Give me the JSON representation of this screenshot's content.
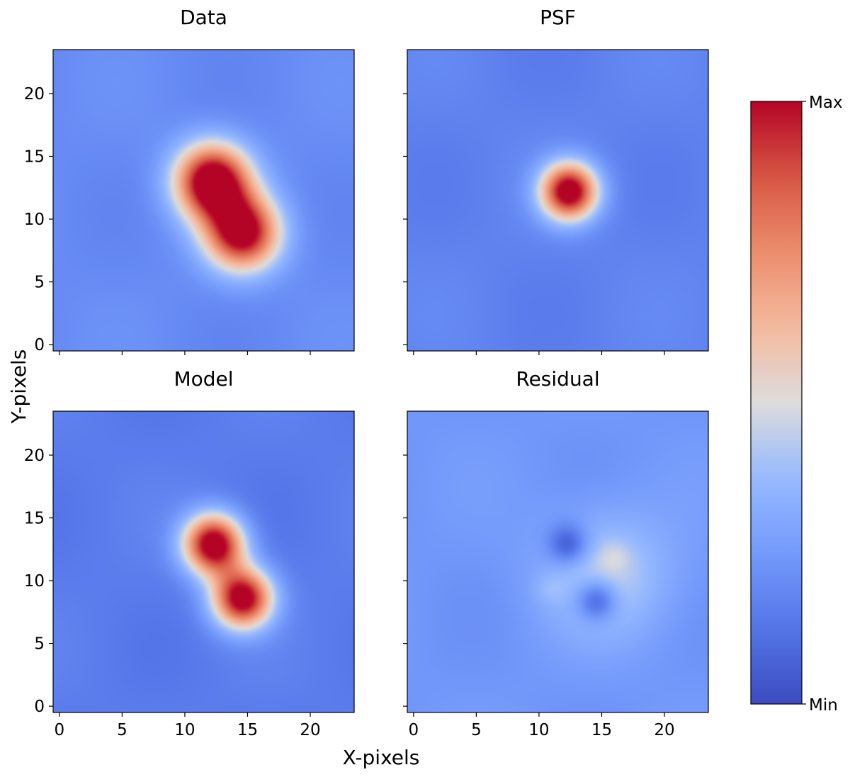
{
  "chart_data": {
    "type": "heatmap",
    "colormap": "coolwarm",
    "xlabel": "X-pixels",
    "ylabel": "Y-pixels",
    "xlim": [
      -0.5,
      23.5
    ],
    "ylim": [
      -0.5,
      23.5
    ],
    "xticks": [
      0,
      5,
      10,
      15,
      20
    ],
    "yticks": [
      0,
      5,
      10,
      15,
      20
    ],
    "colorbar": {
      "max_label": "Max",
      "min_label": "Min"
    },
    "panels": [
      {
        "title": "Data",
        "background": 0.2,
        "components": [
          {
            "x": 12.2,
            "y": 13.0,
            "amp": 0.95,
            "sigma": 2.1
          },
          {
            "x": 14.6,
            "y": 8.9,
            "amp": 0.86,
            "sigma": 2.1
          }
        ]
      },
      {
        "title": "PSF",
        "background": 0.17,
        "components": [
          {
            "x": 12.4,
            "y": 12.2,
            "amp": 0.92,
            "sigma": 1.6
          }
        ]
      },
      {
        "title": "Model",
        "background": 0.15,
        "components": [
          {
            "x": 12.3,
            "y": 12.9,
            "amp": 0.95,
            "sigma": 1.7
          },
          {
            "x": 14.6,
            "y": 8.6,
            "amp": 0.92,
            "sigma": 1.7
          }
        ]
      },
      {
        "title": "Residual",
        "background": 0.24,
        "components": [
          {
            "x": 15.5,
            "y": 10.5,
            "amp": 0.2,
            "sigma": 3.6
          },
          {
            "x": 12.3,
            "y": 12.9,
            "amp": -0.27,
            "sigma": 1.1
          },
          {
            "x": 14.6,
            "y": 8.4,
            "amp": -0.3,
            "sigma": 1.1
          },
          {
            "x": 16.0,
            "y": 11.9,
            "amp": 0.07,
            "sigma": 0.9
          },
          {
            "x": 10.8,
            "y": 9.3,
            "amp": 0.06,
            "sigma": 0.9
          }
        ]
      }
    ]
  }
}
